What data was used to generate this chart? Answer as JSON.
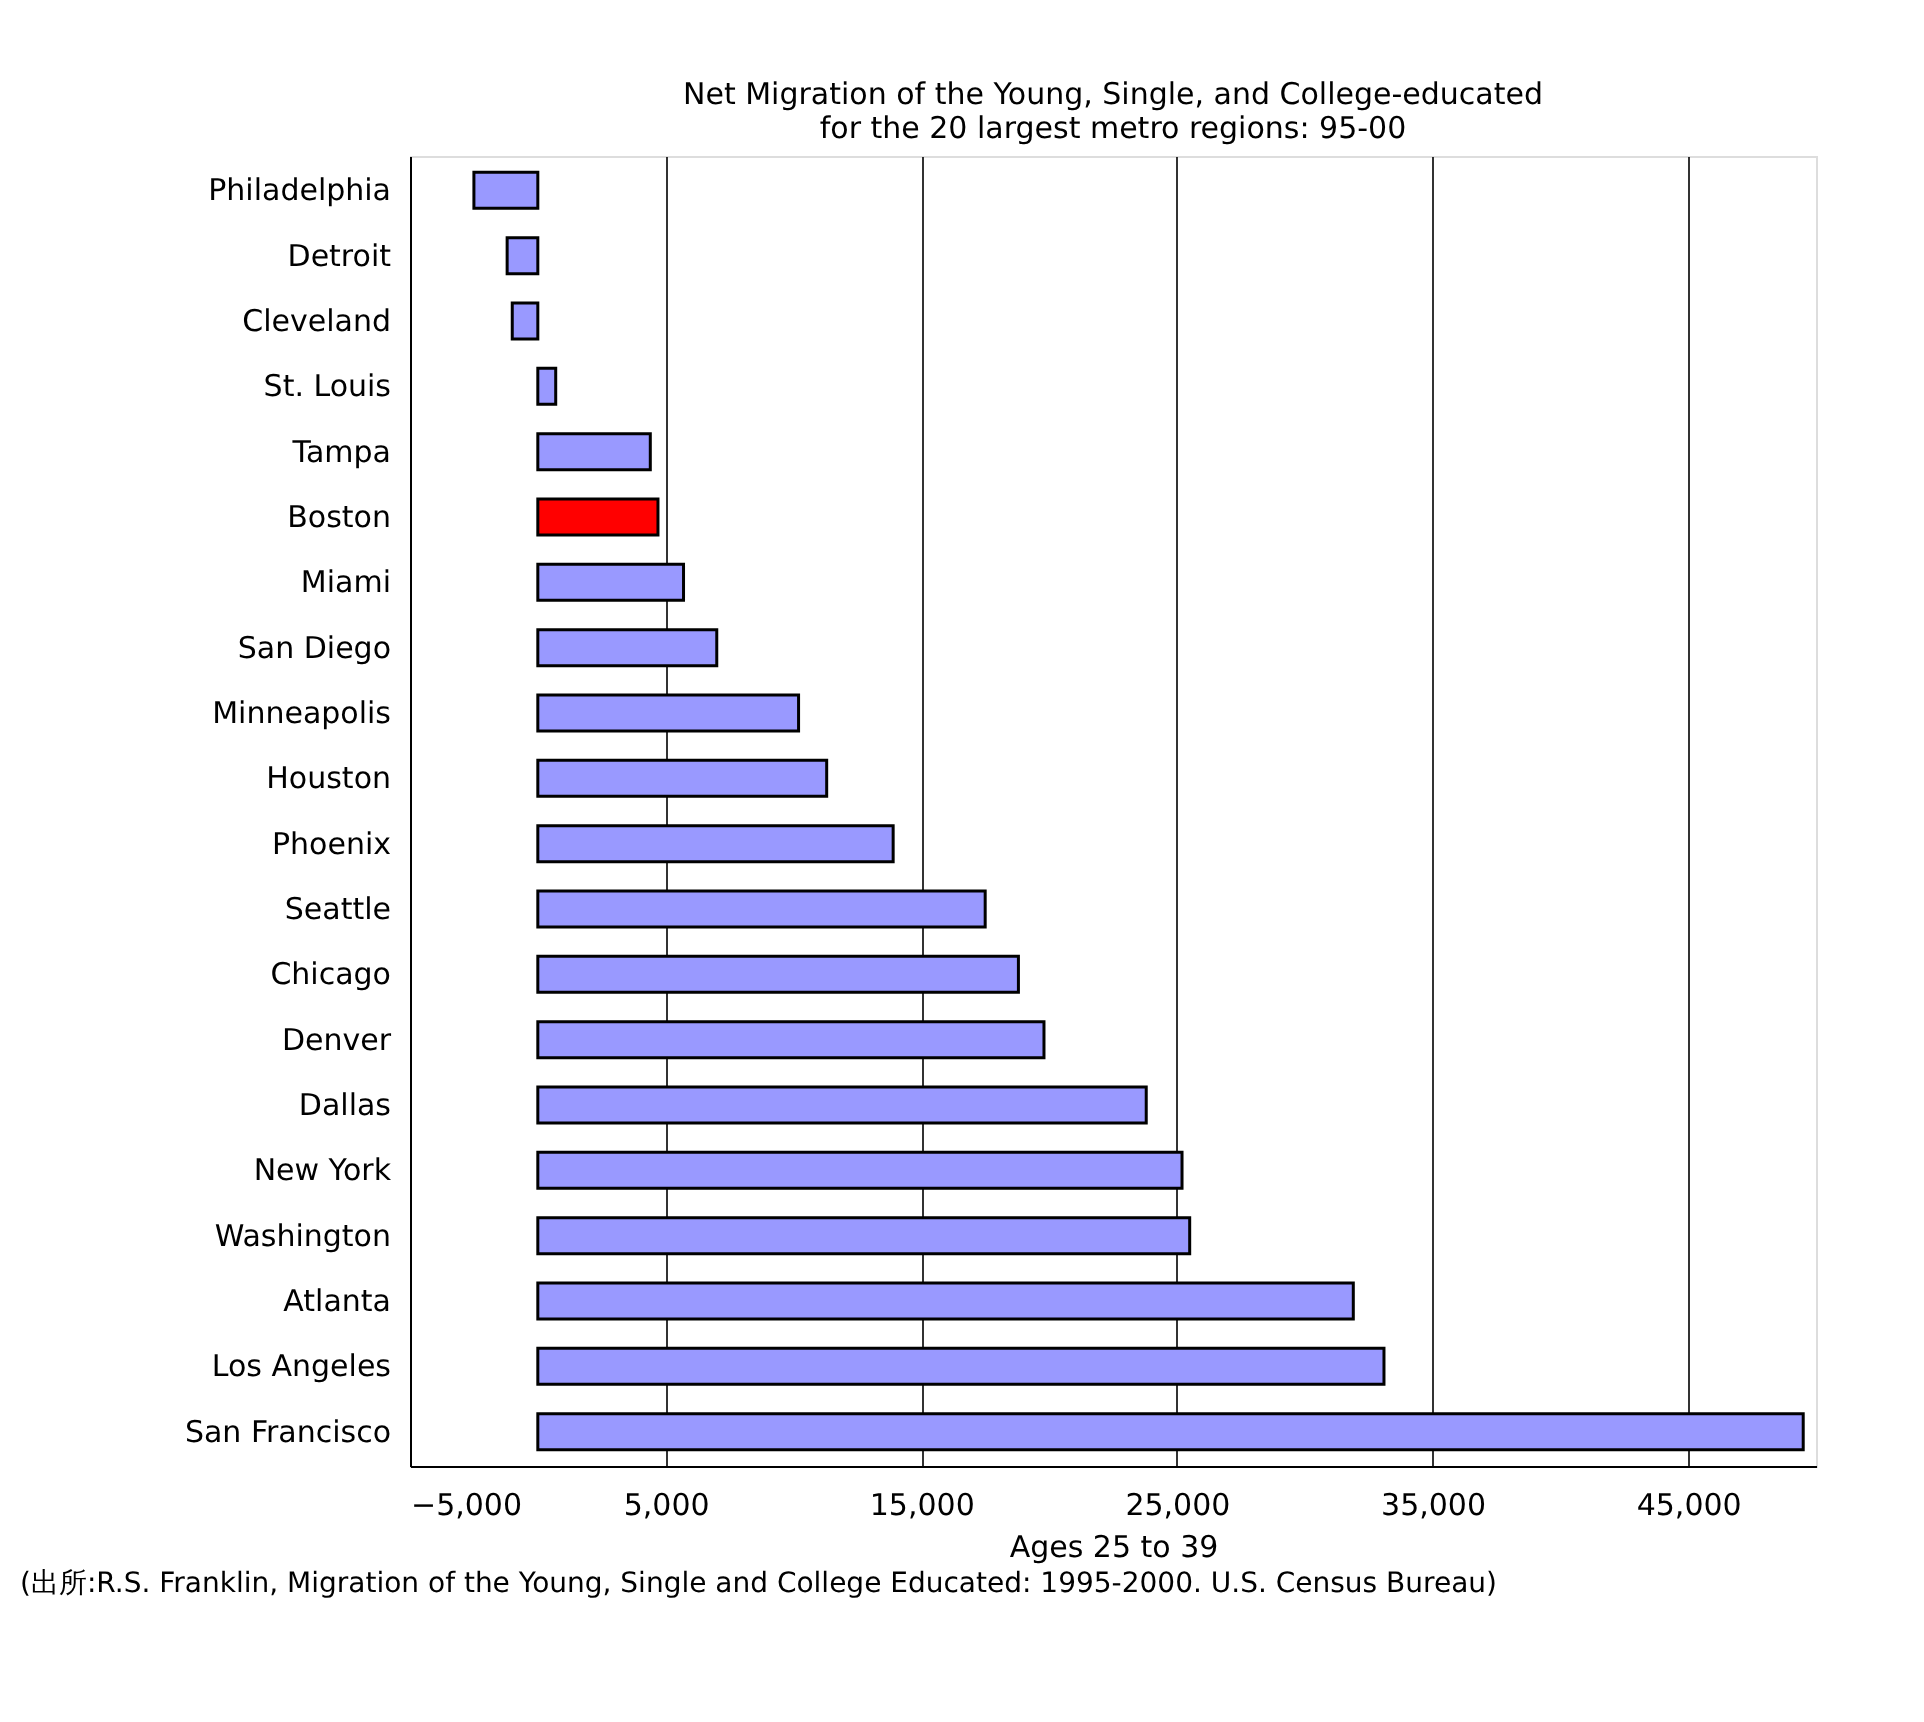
{
  "chart_data": {
    "type": "bar",
    "orientation": "horizontal",
    "title": [
      "Net Migration of the Young, Single, and College-educated",
      "for the 20 largest metro regions: 95-00"
    ],
    "xlabel": "Ages 25 to 39",
    "categories": [
      "Philadelphia",
      "Detroit",
      "Cleveland",
      "St. Louis",
      "Tampa",
      "Boston",
      "Miami",
      "San Diego",
      "Minneapolis",
      "Houston",
      "Phoenix",
      "Seattle",
      "Chicago",
      "Denver",
      "Dallas",
      "New York",
      "Washington",
      "Atlanta",
      "Los Angeles",
      "San Francisco"
    ],
    "values": [
      -2500,
      -1200,
      -1000,
      700,
      4400,
      4700,
      5700,
      7000,
      10200,
      11300,
      13900,
      17500,
      18800,
      19800,
      23800,
      25200,
      25500,
      31900,
      33100,
      49500
    ],
    "colors": [
      "#9999ff",
      "#9999ff",
      "#9999ff",
      "#9999ff",
      "#9999ff",
      "#ff0000",
      "#9999ff",
      "#9999ff",
      "#9999ff",
      "#9999ff",
      "#9999ff",
      "#9999ff",
      "#9999ff",
      "#9999ff",
      "#9999ff",
      "#9999ff",
      "#9999ff",
      "#9999ff",
      "#9999ff",
      "#9999ff"
    ],
    "xlim": [
      -5000,
      50000
    ],
    "xticks": [
      {
        "value": -5000,
        "label": "−5,000"
      },
      {
        "value": 5000,
        "label": "5,000"
      },
      {
        "value": 15000,
        "label": "15,000"
      },
      {
        "value": 25000,
        "label": "25,000"
      },
      {
        "value": 35000,
        "label": "35,000"
      },
      {
        "value": 45000,
        "label": "45,000"
      }
    ],
    "grid": "x",
    "annotations": [
      "(出所:R.S. Franklin, Migration of the Young, Single and College Educated: 1995-2000. U.S. Census Bureau)"
    ]
  }
}
